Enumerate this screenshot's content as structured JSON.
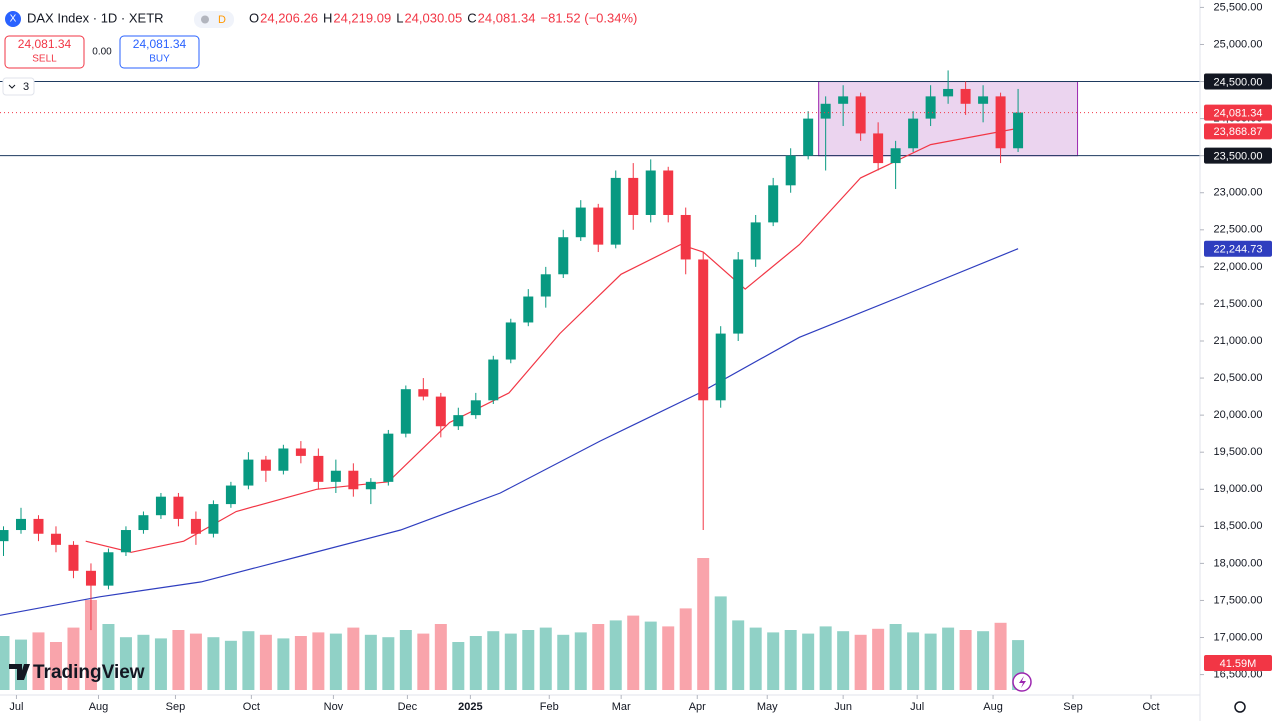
{
  "toolbar": {
    "title": "DAX Index · 1D · XETR",
    "badge": "D",
    "ohlc": [
      {
        "key": "O",
        "value": "24,206.26"
      },
      {
        "key": "H",
        "value": "24,219.09"
      },
      {
        "key": "L",
        "value": "24,030.05"
      },
      {
        "key": "C",
        "value": "24,081.34"
      }
    ],
    "change": "−81.52 (−0.34%)",
    "sell_price": "24,081.34",
    "sell": "SELL",
    "spread": "0.00",
    "buy_price": "24,081.34",
    "buy": "BUY",
    "indicators": "3",
    "logo": "TradingView"
  },
  "chart_data": {
    "type": "candlestick",
    "up_color": "#089981",
    "down_color": "#f23645",
    "x": [
      0,
      1,
      2,
      3,
      4,
      5,
      6,
      7,
      8,
      9,
      10,
      11,
      12,
      13,
      14,
      15,
      16,
      17,
      18,
      19,
      20,
      21,
      22,
      23,
      24,
      25,
      26,
      27,
      28,
      29,
      30,
      31,
      32,
      33,
      34,
      35,
      36,
      37,
      38,
      39,
      40,
      41,
      42,
      43,
      44,
      45,
      46,
      47,
      48,
      49,
      50,
      51,
      52,
      53,
      54,
      55,
      56,
      57,
      58
    ],
    "open": [
      18300,
      18450,
      18600,
      18400,
      18250,
      17900,
      17700,
      18150,
      18450,
      18650,
      18900,
      18600,
      18400,
      18800,
      19050,
      19400,
      19250,
      19550,
      19450,
      19100,
      19250,
      19000,
      19100,
      19750,
      20350,
      20250,
      19850,
      20000,
      20200,
      20750,
      21250,
      21600,
      21900,
      22400,
      22800,
      22300,
      23200,
      22700,
      23300,
      22700,
      22100,
      20200,
      21100,
      22100,
      22600,
      23100,
      23500,
      24000,
      24200,
      24300,
      23800,
      23400,
      23600,
      24000,
      24300,
      24400,
      24200,
      24300,
      23600
    ],
    "high": [
      18500,
      18750,
      18650,
      18500,
      18300,
      18000,
      18200,
      18500,
      18700,
      18950,
      18950,
      18700,
      18850,
      19100,
      19500,
      19450,
      19600,
      19650,
      19550,
      19400,
      19350,
      19150,
      19800,
      20400,
      20500,
      20300,
      20100,
      20300,
      20800,
      21300,
      21700,
      22000,
      22500,
      22900,
      22850,
      23300,
      23400,
      23450,
      23350,
      22800,
      22200,
      21200,
      22200,
      22700,
      23200,
      23600,
      24100,
      24300,
      24450,
      24350,
      23950,
      23700,
      24100,
      24450,
      24650,
      24500,
      24450,
      24350,
      24400
    ],
    "low": [
      18100,
      18400,
      18300,
      18150,
      17800,
      17100,
      17650,
      18100,
      18400,
      18600,
      18500,
      18250,
      18350,
      18750,
      19000,
      19100,
      19200,
      19350,
      19000,
      18950,
      18900,
      18800,
      19050,
      19700,
      20200,
      19700,
      19800,
      19950,
      20150,
      20700,
      21200,
      21450,
      21850,
      22350,
      22200,
      22250,
      22500,
      22600,
      22600,
      21900,
      18450,
      20100,
      21000,
      22000,
      22550,
      23000,
      23450,
      23300,
      23900,
      23700,
      23300,
      23050,
      23550,
      23900,
      24200,
      24050,
      23950,
      23400,
      23550
    ],
    "close": [
      18450,
      18600,
      18400,
      18250,
      17900,
      17700,
      18150,
      18450,
      18650,
      18900,
      18600,
      18400,
      18800,
      19050,
      19400,
      19250,
      19550,
      19450,
      19100,
      19250,
      19000,
      19100,
      19750,
      20350,
      20250,
      19850,
      20000,
      20200,
      20750,
      21250,
      21600,
      21900,
      22400,
      22800,
      22300,
      23200,
      22700,
      23300,
      22700,
      22100,
      20200,
      21100,
      22100,
      22600,
      23100,
      23500,
      24000,
      24200,
      24300,
      23800,
      23400,
      23600,
      24000,
      24300,
      24400,
      24200,
      24300,
      23600,
      24081.34
    ],
    "volume": [
      45,
      42,
      48,
      40,
      52,
      75,
      55,
      44,
      46,
      43,
      50,
      47,
      44,
      41,
      49,
      46,
      43,
      45,
      48,
      47,
      52,
      46,
      44,
      50,
      47,
      55,
      40,
      45,
      49,
      47,
      50,
      52,
      46,
      48,
      55,
      58,
      62,
      57,
      53,
      68,
      110,
      78,
      58,
      52,
      48,
      50,
      47,
      53,
      49,
      46,
      51,
      55,
      48,
      47,
      52,
      50,
      49,
      56,
      41.59
    ],
    "volume_label": "41.59M",
    "volume_ylim": [
      0,
      150
    ],
    "lines": [
      {
        "color": "#f23645",
        "x": [
          4.7,
          7.3,
          10.3,
          13.3,
          17.9,
          22,
          25.5,
          28.9,
          31.8,
          35.3,
          38.7,
          40,
          42.4,
          45.5,
          49,
          53,
          58
        ],
        "values": [
          18300,
          18150,
          18300,
          18700,
          19000,
          19100,
          19900,
          20300,
          21100,
          21900,
          22300,
          22200,
          21700,
          22300,
          23200,
          23650,
          23868.87
        ]
      },
      {
        "color": "#2f3ebf",
        "x": [
          -0.2,
          5.5,
          11.3,
          17,
          22.7,
          28.4,
          34.1,
          39.8,
          45.5,
          51.3,
          58
        ],
        "values": [
          17300,
          17550,
          17750,
          18100,
          18450,
          18950,
          19650,
          20300,
          21050,
          21600,
          22244.73
        ]
      }
    ],
    "box": {
      "x": [
        46.6,
        61.4
      ],
      "y": [
        23500,
        24500
      ],
      "color": "#9c27b0"
    },
    "levels": [
      {
        "value": 24500,
        "label": "24,500.00"
      },
      {
        "value": 23500,
        "label": "23,500.00"
      }
    ],
    "last_price": {
      "value": 24081.34,
      "label": "24,081.34"
    },
    "line_labels": [
      "23,868.87",
      "22,244.73"
    ],
    "xlim": [
      -0.2,
      68.4
    ],
    "xticks": [
      {
        "value": 0.74,
        "label": "Jul"
      },
      {
        "value": 5.43,
        "label": "Aug"
      },
      {
        "value": 9.83,
        "label": "Sep"
      },
      {
        "value": 14.17,
        "label": "Oct"
      },
      {
        "value": 18.86,
        "label": "Nov"
      },
      {
        "value": 23.09,
        "label": "Dec"
      },
      {
        "value": 26.69,
        "label": "2025"
      },
      {
        "value": 31.2,
        "label": "Feb"
      },
      {
        "value": 35.31,
        "label": "Mar"
      },
      {
        "value": 39.66,
        "label": "Apr"
      },
      {
        "value": 43.66,
        "label": "May"
      },
      {
        "value": 48,
        "label": "Jun"
      },
      {
        "value": 52.23,
        "label": "Jul"
      },
      {
        "value": 56.57,
        "label": "Aug"
      },
      {
        "value": 61.14,
        "label": "Sep"
      },
      {
        "value": 65.6,
        "label": "Oct"
      }
    ],
    "ylim": [
      16400,
      25600
    ],
    "yticks": [
      {
        "value": 16500,
        "label": "16,500.00"
      },
      {
        "value": 17000,
        "label": "17,000.00"
      },
      {
        "value": 17500,
        "label": "17,500.00"
      },
      {
        "value": 18000,
        "label": "18,000.00"
      },
      {
        "value": 18500,
        "label": "18,500.00"
      },
      {
        "value": 19000,
        "label": "19,000.00"
      },
      {
        "value": 19500,
        "label": "19,500.00"
      },
      {
        "value": 20000,
        "label": "20,000.00"
      },
      {
        "value": 20500,
        "label": "20,500.00"
      },
      {
        "value": 21000,
        "label": "21,000.00"
      },
      {
        "value": 21500,
        "label": "21,500.00"
      },
      {
        "value": 22000,
        "label": "22,000.00"
      },
      {
        "value": 22500,
        "label": "22,500.00"
      },
      {
        "value": 23000,
        "label": "23,000.00"
      },
      {
        "value": 23500,
        "label": "23,500.00"
      },
      {
        "value": 24000,
        "label": "24,000.00"
      },
      {
        "value": 24500,
        "label": "24,500.00"
      },
      {
        "value": 25000,
        "label": "25,000.00"
      },
      {
        "value": 25500,
        "label": "25,500.00"
      }
    ]
  }
}
